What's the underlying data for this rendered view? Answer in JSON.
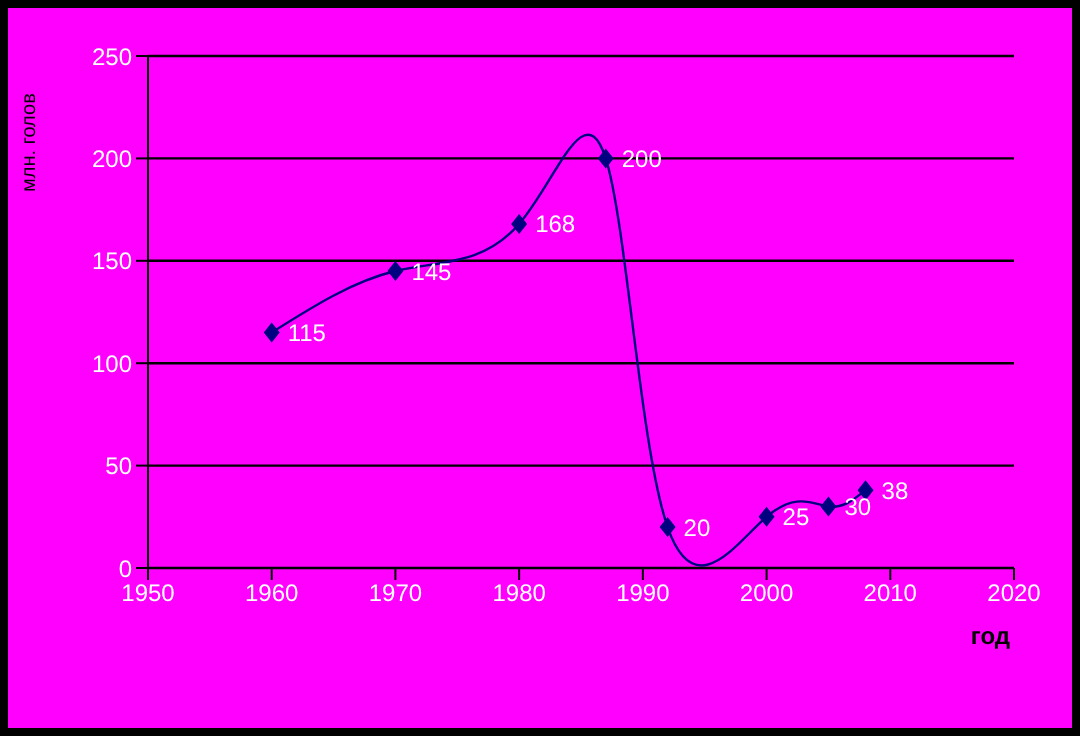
{
  "chart_data": {
    "type": "line",
    "xlabel": "год",
    "ylabel": "млн. голов",
    "x": [
      1960,
      1970,
      1980,
      1987,
      1992,
      2000,
      2005,
      2008
    ],
    "series": [
      {
        "color": "#000080",
        "values": [
          115,
          145,
          168,
          200,
          20,
          25,
          30,
          38
        ]
      }
    ],
    "xlim": [
      1950,
      2020
    ],
    "xticks": [
      1950,
      1960,
      1970,
      1980,
      1990,
      2000,
      2010,
      2020
    ],
    "ylim": [
      0,
      250
    ],
    "yticks": [
      0,
      50,
      100,
      150,
      200,
      250
    ],
    "grid": "y",
    "legend": false,
    "marker": "diamond",
    "data_labels": true,
    "line_style": "solid"
  }
}
